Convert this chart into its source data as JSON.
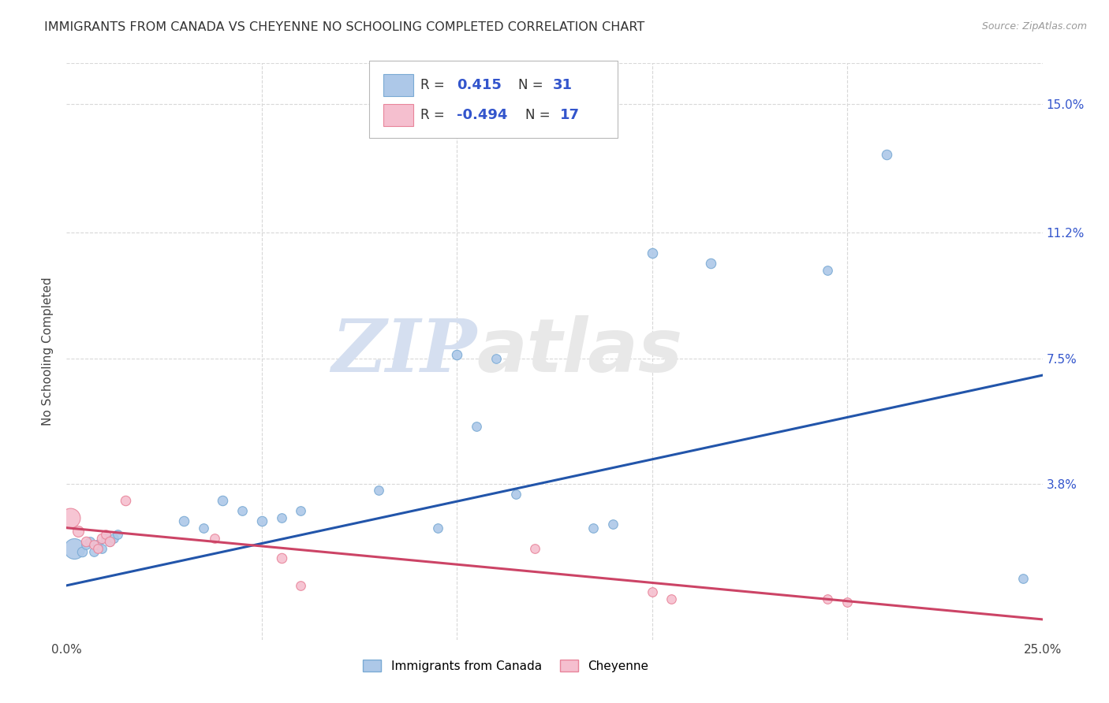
{
  "title": "IMMIGRANTS FROM CANADA VS CHEYENNE NO SCHOOLING COMPLETED CORRELATION CHART",
  "source": "Source: ZipAtlas.com",
  "ylabel": "No Schooling Completed",
  "xlim": [
    0,
    0.25
  ],
  "ylim": [
    -0.008,
    0.162
  ],
  "ytick_positions": [
    0.038,
    0.075,
    0.112,
    0.15
  ],
  "ytick_labels": [
    "3.8%",
    "7.5%",
    "11.2%",
    "15.0%"
  ],
  "blue_color": "#adc8e8",
  "blue_edge": "#7aaad4",
  "pink_color": "#f5bfcf",
  "pink_edge": "#e8849a",
  "line_blue": "#2255aa",
  "line_pink": "#cc4466",
  "label_blue": "Immigrants from Canada",
  "label_pink": "Cheyenne",
  "blue_points": [
    [
      0.002,
      0.019,
      350
    ],
    [
      0.004,
      0.018,
      80
    ],
    [
      0.005,
      0.02,
      70
    ],
    [
      0.006,
      0.021,
      70
    ],
    [
      0.007,
      0.018,
      70
    ],
    [
      0.008,
      0.02,
      80
    ],
    [
      0.009,
      0.019,
      70
    ],
    [
      0.01,
      0.022,
      70
    ],
    [
      0.011,
      0.021,
      70
    ],
    [
      0.012,
      0.022,
      70
    ],
    [
      0.013,
      0.023,
      70
    ],
    [
      0.03,
      0.027,
      80
    ],
    [
      0.035,
      0.025,
      70
    ],
    [
      0.04,
      0.033,
      80
    ],
    [
      0.045,
      0.03,
      70
    ],
    [
      0.05,
      0.027,
      80
    ],
    [
      0.055,
      0.028,
      70
    ],
    [
      0.06,
      0.03,
      70
    ],
    [
      0.08,
      0.036,
      70
    ],
    [
      0.095,
      0.025,
      70
    ],
    [
      0.1,
      0.076,
      80
    ],
    [
      0.105,
      0.055,
      70
    ],
    [
      0.11,
      0.075,
      70
    ],
    [
      0.115,
      0.035,
      70
    ],
    [
      0.135,
      0.025,
      70
    ],
    [
      0.14,
      0.026,
      70
    ],
    [
      0.15,
      0.106,
      80
    ],
    [
      0.165,
      0.103,
      80
    ],
    [
      0.195,
      0.101,
      70
    ],
    [
      0.21,
      0.135,
      80
    ],
    [
      0.245,
      0.01,
      70
    ]
  ],
  "pink_points": [
    [
      0.001,
      0.028,
      320
    ],
    [
      0.003,
      0.024,
      100
    ],
    [
      0.005,
      0.021,
      80
    ],
    [
      0.007,
      0.02,
      70
    ],
    [
      0.008,
      0.019,
      70
    ],
    [
      0.009,
      0.022,
      80
    ],
    [
      0.01,
      0.023,
      70
    ],
    [
      0.011,
      0.021,
      80
    ],
    [
      0.015,
      0.033,
      80
    ],
    [
      0.038,
      0.022,
      70
    ],
    [
      0.055,
      0.016,
      80
    ],
    [
      0.06,
      0.008,
      70
    ],
    [
      0.12,
      0.019,
      70
    ],
    [
      0.15,
      0.006,
      70
    ],
    [
      0.155,
      0.004,
      70
    ],
    [
      0.195,
      0.004,
      70
    ],
    [
      0.2,
      0.003,
      70
    ]
  ],
  "blue_line_x": [
    0.0,
    0.25
  ],
  "blue_line_y": [
    0.008,
    0.07
  ],
  "pink_line_x": [
    0.0,
    0.25
  ],
  "pink_line_y": [
    0.025,
    -0.002
  ],
  "watermark_zip": "ZIP",
  "watermark_atlas": "atlas",
  "background_color": "#ffffff",
  "grid_color": "#d8d8d8",
  "legend_text_color": "#3355cc",
  "legend_label_color": "#333333"
}
